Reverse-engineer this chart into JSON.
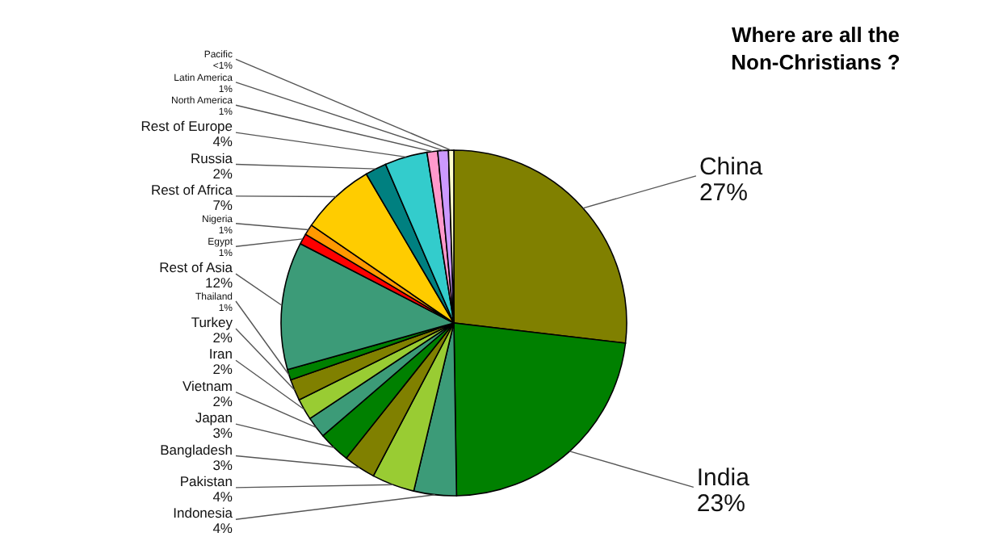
{
  "chart_data": {
    "type": "pie",
    "title": "Where are all the Non-Christians ?",
    "categories": [
      "China",
      "India",
      "Indonesia",
      "Pakistan",
      "Bangladesh",
      "Japan",
      "Vietnam",
      "Iran",
      "Turkey",
      "Thailand",
      "Rest of Asia",
      "Egypt",
      "Nigeria",
      "Rest of Africa",
      "Russia",
      "Rest of Europe",
      "North America",
      "Latin America",
      "Pacific"
    ],
    "values": [
      27,
      23,
      4,
      4,
      3,
      3,
      2,
      2,
      2,
      1,
      12,
      1,
      1,
      7,
      2,
      4,
      1,
      1,
      0.5
    ],
    "value_labels": [
      "27%",
      "23%",
      "4%",
      "4%",
      "3%",
      "3%",
      "2%",
      "2%",
      "2%",
      "1%",
      "12%",
      "1%",
      "1%",
      "7%",
      "2%",
      "4%",
      "1%",
      "1%",
      "<1%"
    ],
    "colors": [
      "#808000",
      "#008000",
      "#3c9b78",
      "#99cc33",
      "#808000",
      "#008000",
      "#3c9b78",
      "#99cc33",
      "#808000",
      "#008000",
      "#3c9b78",
      "#ff0000",
      "#ff9900",
      "#ffcc00",
      "#008080",
      "#33cccc",
      "#ff99cc",
      "#cc99ff",
      "#ffffcc"
    ]
  }
}
